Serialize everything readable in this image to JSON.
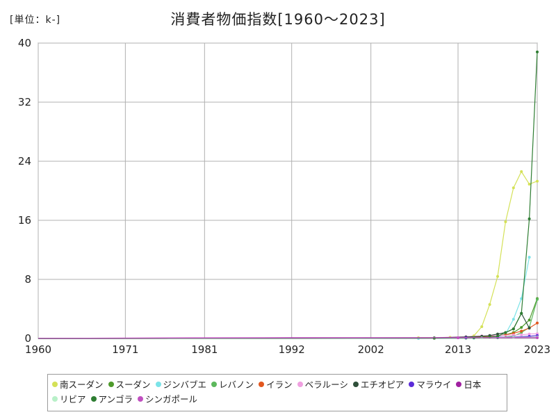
{
  "header": {
    "unit": "[単位：k-]",
    "title": "消費者物価指数[1960～2023]"
  },
  "chart_data": {
    "type": "line",
    "title": "消費者物価指数[1960～2023]",
    "unit": "[単位：k-]",
    "xlabel": "",
    "ylabel": "",
    "xlim": [
      1960,
      2023
    ],
    "ylim": [
      0,
      40
    ],
    "x_ticks": [
      "1960",
      "1971",
      "1981",
      "1992",
      "2002",
      "2013",
      "2023"
    ],
    "y_ticks": [
      "0",
      "8",
      "16",
      "24",
      "32",
      "40"
    ],
    "grid": true,
    "legend_position": "bottom",
    "series": [
      {
        "name": "南スーダン",
        "color": "#d4e157",
        "points": [
          [
            2008,
            0.1
          ],
          [
            2010,
            0.1
          ],
          [
            2012,
            0.15
          ],
          [
            2014,
            0.2
          ],
          [
            2015,
            0.35
          ],
          [
            2016,
            1.6
          ],
          [
            2017,
            4.6
          ],
          [
            2018,
            8.4
          ],
          [
            2019,
            15.8
          ],
          [
            2020,
            20.4
          ],
          [
            2021,
            22.6
          ],
          [
            2022,
            20.9
          ],
          [
            2023,
            21.3
          ]
        ]
      },
      {
        "name": "スーダン",
        "color": "#4e9a2b",
        "points": [
          [
            1960,
            0.0
          ],
          [
            1990,
            0.0
          ],
          [
            2010,
            0.02
          ],
          [
            2014,
            0.05
          ],
          [
            2016,
            0.1
          ],
          [
            2018,
            0.3
          ],
          [
            2019,
            0.5
          ],
          [
            2020,
            0.8
          ],
          [
            2021,
            1.5
          ],
          [
            2022,
            2.5
          ],
          [
            2023,
            5.4
          ]
        ]
      },
      {
        "name": "ジンバブエ",
        "color": "#7be3e8",
        "points": [
          [
            1960,
            0.0
          ],
          [
            2008,
            0.0
          ],
          [
            2015,
            0.05
          ],
          [
            2018,
            0.2
          ],
          [
            2019,
            0.6
          ],
          [
            2020,
            2.6
          ],
          [
            2021,
            5.4
          ],
          [
            2022,
            11.0
          ]
        ]
      },
      {
        "name": "レバノン",
        "color": "#5cb85c",
        "points": [
          [
            1960,
            0.0
          ],
          [
            2014,
            0.05
          ],
          [
            2018,
            0.1
          ],
          [
            2020,
            0.3
          ],
          [
            2021,
            0.8
          ],
          [
            2022,
            1.5
          ],
          [
            2023,
            5.3
          ]
        ]
      },
      {
        "name": "イラン",
        "color": "#e2571e",
        "points": [
          [
            1960,
            0.0
          ],
          [
            2000,
            0.01
          ],
          [
            2010,
            0.05
          ],
          [
            2014,
            0.15
          ],
          [
            2016,
            0.2
          ],
          [
            2018,
            0.35
          ],
          [
            2019,
            0.5
          ],
          [
            2020,
            0.7
          ],
          [
            2021,
            1.0
          ],
          [
            2022,
            1.4
          ],
          [
            2023,
            2.1
          ]
        ]
      },
      {
        "name": "ベラルーシ",
        "color": "#f0a0e0",
        "points": [
          [
            1992,
            0.0
          ],
          [
            2000,
            0.02
          ],
          [
            2010,
            0.1
          ],
          [
            2014,
            0.25
          ],
          [
            2016,
            0.35
          ],
          [
            2018,
            0.4
          ],
          [
            2020,
            0.45
          ],
          [
            2021,
            0.5
          ],
          [
            2022,
            0.6
          ],
          [
            2023,
            0.65
          ]
        ]
      },
      {
        "name": "エチオピア",
        "color": "#2f4f3a",
        "points": [
          [
            1960,
            0.0
          ],
          [
            2000,
            0.01
          ],
          [
            2010,
            0.08
          ],
          [
            2014,
            0.2
          ],
          [
            2016,
            0.3
          ],
          [
            2017,
            0.4
          ],
          [
            2018,
            0.6
          ],
          [
            2019,
            0.8
          ],
          [
            2020,
            1.3
          ],
          [
            2021,
            3.4
          ],
          [
            2022,
            1.4
          ]
        ]
      },
      {
        "name": "マラウイ",
        "color": "#5b2bd8",
        "points": [
          [
            1960,
            0.0
          ],
          [
            2000,
            0.02
          ],
          [
            2010,
            0.05
          ],
          [
            2014,
            0.1
          ],
          [
            2018,
            0.15
          ],
          [
            2020,
            0.2
          ],
          [
            2022,
            0.3
          ],
          [
            2023,
            0.4
          ]
        ]
      },
      {
        "name": "日本",
        "color": "#a020a0",
        "points": [
          [
            1960,
            0.02
          ],
          [
            1980,
            0.08
          ],
          [
            1992,
            0.1
          ],
          [
            2002,
            0.1
          ],
          [
            2013,
            0.1
          ],
          [
            2023,
            0.11
          ]
        ]
      },
      {
        "name": "リビア",
        "color": "#b8f0c8",
        "points": [
          [
            1960,
            0.0
          ],
          [
            2000,
            0.01
          ],
          [
            2010,
            0.05
          ],
          [
            2016,
            0.1
          ],
          [
            2020,
            0.15
          ],
          [
            2023,
            0.2
          ]
        ]
      },
      {
        "name": "アンゴラ",
        "color": "#2e7d32",
        "points": [
          [
            1960,
            0.0
          ],
          [
            2010,
            0.05
          ],
          [
            2015,
            0.1
          ],
          [
            2017,
            0.2
          ],
          [
            2018,
            0.3
          ],
          [
            2019,
            0.8
          ],
          [
            2020,
            1.3
          ],
          [
            2021,
            3.4
          ],
          [
            2022,
            16.2
          ],
          [
            2023,
            38.8
          ]
        ]
      },
      {
        "name": "シンガポール",
        "color": "#c050c0",
        "points": [
          [
            1960,
            0.02
          ],
          [
            1980,
            0.06
          ],
          [
            2000,
            0.08
          ],
          [
            2013,
            0.1
          ],
          [
            2023,
            0.12
          ]
        ]
      }
    ]
  }
}
